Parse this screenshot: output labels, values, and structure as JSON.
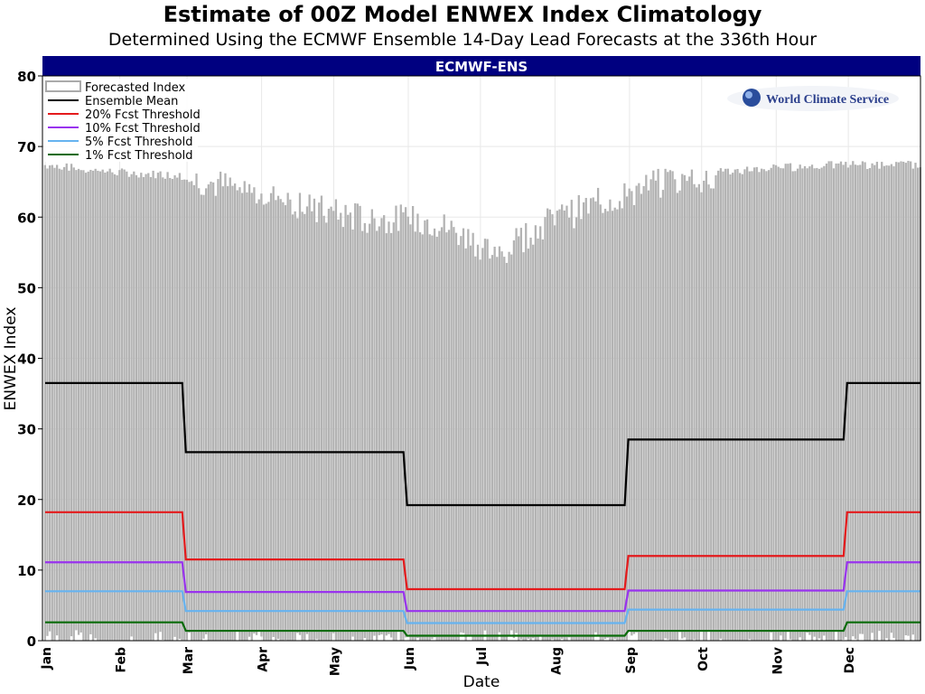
{
  "chart_data": {
    "type": "bar",
    "title": "Estimate of 00Z Model ENWEX Index Climatology",
    "subtitle": "Determined Using the ECMWF Ensemble 14-Day Lead Forecasts at the 336th Hour",
    "panel_title": "ECMWF-ENS",
    "logo_text": "World Climate Service",
    "xlabel": "Date",
    "ylabel": "ENWEX Index",
    "ylim": [
      0,
      80
    ],
    "yticks": [
      0,
      10,
      20,
      30,
      40,
      50,
      60,
      70,
      80
    ],
    "xticks": [
      "Jan",
      "Feb",
      "Mar",
      "Apr",
      "May",
      "Jun",
      "Jul",
      "Aug",
      "Sep",
      "Oct",
      "Nov",
      "Dec"
    ],
    "xtick_days": [
      1,
      32,
      60,
      91,
      121,
      152,
      182,
      213,
      244,
      274,
      305,
      335
    ],
    "grid": true,
    "legend_position": "top-left",
    "legend": [
      "Forecasted Index",
      "Ensemble Mean",
      "20% Fcst Threshold",
      "10% Fcst Threshold",
      "5% Fcst Threshold",
      "1% Fcst Threshold"
    ],
    "forecasted_index_max_envelope": {
      "day": [
        1,
        30,
        58,
        75,
        100,
        120,
        140,
        160,
        175,
        190,
        205,
        220,
        240,
        260,
        280,
        300,
        330,
        365
      ],
      "value": [
        67.5,
        66.5,
        66,
        65,
        63,
        61,
        60,
        60,
        58,
        55,
        59,
        61,
        63.5,
        65.5,
        66.5,
        67,
        67.5,
        67.5
      ]
    },
    "step_change_days": [
      59,
      151,
      243,
      334
    ],
    "series": [
      {
        "name": "Ensemble Mean",
        "color": "#000000",
        "values": [
          36.5,
          26.7,
          19.2,
          28.5,
          36.5
        ]
      },
      {
        "name": "20% Fcst Threshold",
        "color": "#e41a1c",
        "values": [
          18.2,
          11.5,
          7.3,
          12.0,
          18.2
        ]
      },
      {
        "name": "10% Fcst Threshold",
        "color": "#9933ee",
        "values": [
          11.1,
          6.9,
          4.2,
          7.1,
          11.1
        ]
      },
      {
        "name": "5% Fcst Threshold",
        "color": "#66b3f0",
        "values": [
          7.0,
          4.2,
          2.5,
          4.4,
          7.0
        ]
      },
      {
        "name": "1% Fcst Threshold",
        "color": "#0a6b0a",
        "values": [
          2.6,
          1.4,
          0.7,
          1.4,
          2.6
        ]
      }
    ],
    "colors": {
      "bars": "#b3b3b3",
      "panel_bar": "#000080"
    }
  }
}
